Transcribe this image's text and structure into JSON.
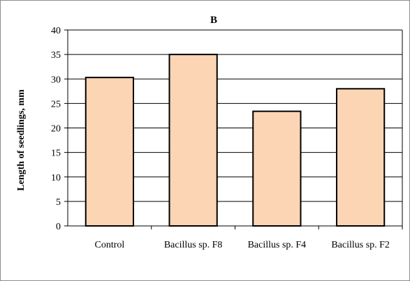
{
  "chart_data": {
    "type": "bar",
    "title": "B",
    "xlabel": "",
    "ylabel": "Length of seedlings, mm",
    "categories": [
      "Control",
      "Bacillus sp. F8",
      "Bacillus sp. F4",
      "Bacillus sp. F2"
    ],
    "values": [
      30.3,
      35.0,
      23.4,
      28.0
    ],
    "ylim": [
      0,
      40
    ],
    "yticks": [
      0,
      5,
      10,
      15,
      20,
      25,
      30,
      35,
      40
    ],
    "grid": true,
    "legend": "none",
    "bar_color": "#fcd5b4",
    "bar_edge_color": "#000000"
  }
}
